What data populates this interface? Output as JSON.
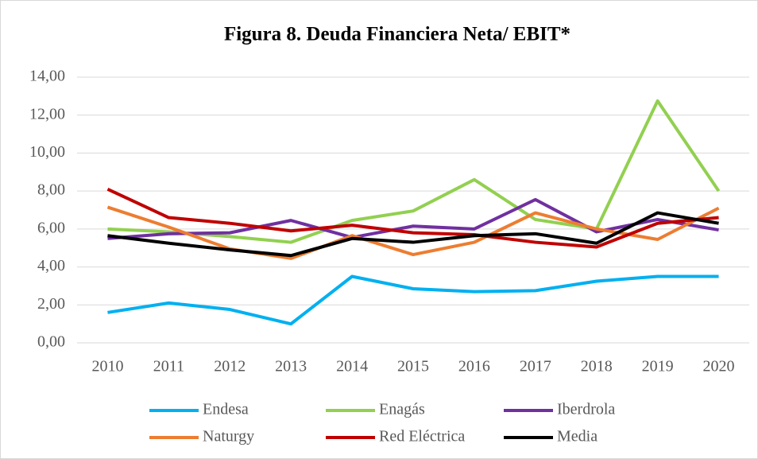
{
  "chart_data": {
    "type": "line",
    "title": "Figura 8. Deuda Financiera Neta/ EBIT*",
    "categories": [
      "2010",
      "2011",
      "2012",
      "2013",
      "2014",
      "2015",
      "2016",
      "2017",
      "2018",
      "2019",
      "2020"
    ],
    "series": [
      {
        "name": "Endesa",
        "color": "#00b0f0",
        "values": [
          1.6,
          2.1,
          1.76,
          1.0,
          3.5,
          2.85,
          2.7,
          2.75,
          3.25,
          3.5,
          3.5
        ]
      },
      {
        "name": "Enagás",
        "color": "#92d050",
        "values": [
          6.0,
          5.85,
          5.6,
          5.3,
          6.45,
          6.95,
          8.6,
          6.5,
          6.0,
          12.75,
          8.0
        ]
      },
      {
        "name": "Iberdrola",
        "color": "#7030a0",
        "values": [
          5.5,
          5.75,
          5.8,
          6.45,
          5.55,
          6.15,
          6.0,
          7.55,
          5.85,
          6.5,
          5.95
        ]
      },
      {
        "name": "Naturgy",
        "color": "#ed7d31",
        "values": [
          7.15,
          6.1,
          4.95,
          4.45,
          5.65,
          4.65,
          5.3,
          6.85,
          6.0,
          5.45,
          7.1
        ]
      },
      {
        "name": "Red Eléctrica",
        "color": "#c00000",
        "values": [
          8.1,
          6.6,
          6.3,
          5.9,
          6.2,
          5.8,
          5.7,
          5.3,
          5.05,
          6.3,
          6.6
        ]
      },
      {
        "name": "Media",
        "color": "#000000",
        "values": [
          5.65,
          5.25,
          4.9,
          4.6,
          5.5,
          5.3,
          5.65,
          5.75,
          5.25,
          6.85,
          6.3
        ]
      }
    ],
    "ylim": [
      0,
      14
    ],
    "yticks": [
      {
        "value": 0,
        "label": "0,00"
      },
      {
        "value": 2,
        "label": "2,00"
      },
      {
        "value": 4,
        "label": "4,00"
      },
      {
        "value": 6,
        "label": "6,00"
      },
      {
        "value": 8,
        "label": "8,00"
      },
      {
        "value": 10,
        "label": "10,00"
      },
      {
        "value": 12,
        "label": "12,00"
      },
      {
        "value": 14,
        "label": "14,00"
      }
    ],
    "grid": true,
    "legend": "bottom"
  }
}
